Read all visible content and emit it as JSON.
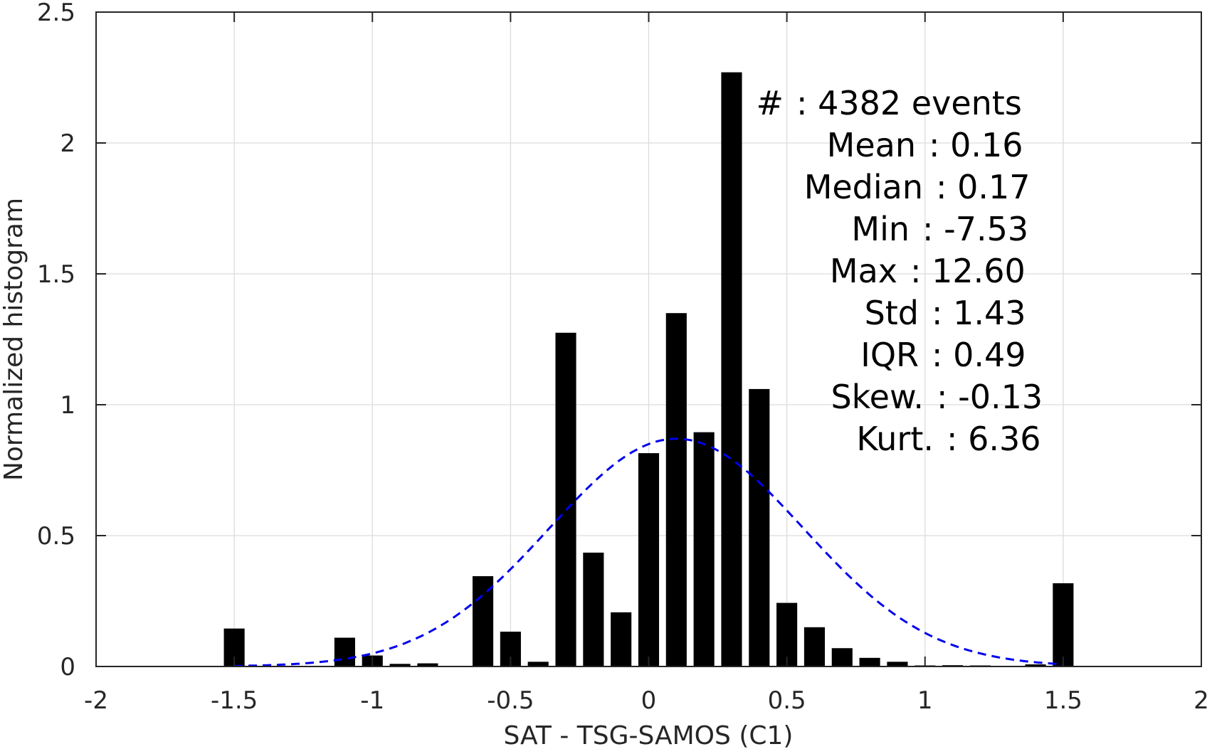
{
  "chart_data": {
    "type": "bar",
    "xlabel": "SAT - TSG-SAMOS (C1)",
    "ylabel": "Normalized histogram",
    "xlim": [
      -2,
      2
    ],
    "ylim": [
      0,
      2.5
    ],
    "grid": true,
    "xticks": [
      "-2",
      "-1.5",
      "-1",
      "-0.5",
      "0",
      "0.5",
      "1",
      "1.5",
      "2"
    ],
    "yticks": [
      "0",
      "0.5",
      "1",
      "1.5",
      "2",
      "2.5"
    ],
    "bin_width": 0.1,
    "bars": [
      {
        "x": -1.5,
        "y": 0.145
      },
      {
        "x": -1.1,
        "y": 0.11
      },
      {
        "x": -1.0,
        "y": 0.042
      },
      {
        "x": -0.9,
        "y": 0.01
      },
      {
        "x": -0.8,
        "y": 0.012
      },
      {
        "x": -0.6,
        "y": 0.345
      },
      {
        "x": -0.5,
        "y": 0.133
      },
      {
        "x": -0.4,
        "y": 0.018
      },
      {
        "x": -0.3,
        "y": 1.275
      },
      {
        "x": -0.2,
        "y": 0.435
      },
      {
        "x": -0.1,
        "y": 0.207
      },
      {
        "x": 0.0,
        "y": 0.815
      },
      {
        "x": 0.1,
        "y": 1.35
      },
      {
        "x": 0.2,
        "y": 0.895
      },
      {
        "x": 0.3,
        "y": 2.27
      },
      {
        "x": 0.4,
        "y": 1.06
      },
      {
        "x": 0.5,
        "y": 0.243
      },
      {
        "x": 0.6,
        "y": 0.15
      },
      {
        "x": 0.7,
        "y": 0.07
      },
      {
        "x": 0.8,
        "y": 0.033
      },
      {
        "x": 0.9,
        "y": 0.018
      },
      {
        "x": 1.0,
        "y": 0.004
      },
      {
        "x": 1.1,
        "y": 0.005
      },
      {
        "x": 1.2,
        "y": 0.004
      },
      {
        "x": 1.4,
        "y": 0.008
      },
      {
        "x": 1.5,
        "y": 0.318
      }
    ],
    "fit_curve": {
      "style": "dashed",
      "color": "#0000ee",
      "mean": 0.1,
      "std": 0.46,
      "peak": 0.87,
      "x_range": [
        -1.5,
        1.5
      ]
    },
    "bar_color": "#000000"
  },
  "stats": [
    {
      "label": "#",
      "value": ": 4382 events"
    },
    {
      "label": "Mean",
      "value": ": 0.16"
    },
    {
      "label": "Median",
      "value": ": 0.17"
    },
    {
      "label": "Min",
      "value": ": -7.53"
    },
    {
      "label": "Max",
      "value": ": 12.60"
    },
    {
      "label": "Std",
      "value": ": 1.43"
    },
    {
      "label": "IQR",
      "value": ": 0.49"
    },
    {
      "label": "Skew.",
      "value": ": -0.13"
    },
    {
      "label": "Kurt.",
      "value": ": 6.36"
    }
  ]
}
